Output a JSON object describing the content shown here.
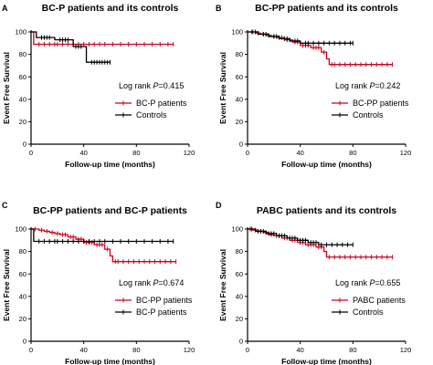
{
  "chart_data": [
    {
      "type": "line",
      "panel_letter": "A",
      "title": "BC-P patients and its controls",
      "xlabel": "Follow-up time (months)",
      "ylabel": "Event Free Survival",
      "xlim": [
        0,
        120
      ],
      "ylim": [
        0,
        100
      ],
      "xticks": [
        "0",
        "40",
        "80",
        "120"
      ],
      "yticks": [
        "0",
        "20",
        "40",
        "60",
        "80",
        "100"
      ],
      "annotation_prefix": "Log rank ",
      "annotation_p": "P",
      "annotation_value": "=0.415",
      "legend_position": "right",
      "series": [
        {
          "name": "BC-P patients",
          "color": "#d0021b",
          "steps": [
            [
              0,
              100
            ],
            [
              2,
              89
            ],
            [
              108,
              89
            ]
          ],
          "censor": [
            6,
            10,
            14,
            18,
            20,
            24,
            28,
            32,
            36,
            40,
            44,
            48,
            52,
            56,
            62,
            68,
            74,
            80,
            86,
            92,
            98,
            104,
            108
          ]
        },
        {
          "name": "Controls",
          "color": "#000000",
          "steps": [
            [
              0,
              100
            ],
            [
              4,
              95
            ],
            [
              16,
              95
            ],
            [
              18,
              93
            ],
            [
              30,
              93
            ],
            [
              32,
              87
            ],
            [
              40,
              87
            ],
            [
              42,
              73
            ],
            [
              60,
              73
            ]
          ],
          "censor": [
            8,
            10,
            12,
            14,
            22,
            24,
            26,
            28,
            34,
            36,
            38,
            46,
            48,
            50,
            52,
            54,
            56,
            58,
            60
          ]
        }
      ]
    },
    {
      "type": "line",
      "panel_letter": "B",
      "title": "BC-PP patients and its controls",
      "xlabel": "Follow-up time (months)",
      "ylabel": "Event Free Survival",
      "xlim": [
        0,
        120
      ],
      "ylim": [
        0,
        100
      ],
      "xticks": [
        "0",
        "40",
        "80",
        "120"
      ],
      "yticks": [
        "0",
        "20",
        "40",
        "60",
        "80",
        "100"
      ],
      "annotation_prefix": "Log rank ",
      "annotation_p": "P",
      "annotation_value": "=0.242",
      "legend_position": "right",
      "series": [
        {
          "name": "BC-PP patients",
          "color": "#d0021b",
          "steps": [
            [
              0,
              100
            ],
            [
              6,
              99
            ],
            [
              10,
              98
            ],
            [
              14,
              97
            ],
            [
              18,
              96
            ],
            [
              22,
              95
            ],
            [
              28,
              93
            ],
            [
              34,
              91
            ],
            [
              40,
              88
            ],
            [
              48,
              86
            ],
            [
              56,
              82
            ],
            [
              60,
              76
            ],
            [
              62,
              71
            ],
            [
              110,
              71
            ]
          ],
          "censor": [
            3,
            8,
            12,
            16,
            20,
            24,
            26,
            30,
            32,
            36,
            38,
            42,
            44,
            46,
            50,
            52,
            54,
            58,
            64,
            66,
            70,
            74,
            78,
            82,
            86,
            90,
            94,
            98,
            102,
            106,
            110
          ]
        },
        {
          "name": "Controls",
          "color": "#000000",
          "steps": [
            [
              0,
              100
            ],
            [
              8,
              98
            ],
            [
              16,
              96
            ],
            [
              24,
              94
            ],
            [
              32,
              92
            ],
            [
              40,
              90
            ],
            [
              80,
              90
            ]
          ],
          "censor": [
            4,
            6,
            12,
            14,
            20,
            22,
            28,
            30,
            36,
            38,
            44,
            46,
            50,
            54,
            58,
            62,
            66,
            70,
            74,
            78,
            80
          ]
        }
      ]
    },
    {
      "type": "line",
      "panel_letter": "C",
      "title": "BC-PP patients and BC-P patients",
      "xlabel": "Follow-up time (months)",
      "ylabel": "Event Free Survival",
      "xlim": [
        0,
        120
      ],
      "ylim": [
        0,
        100
      ],
      "xticks": [
        "0",
        "40",
        "80",
        "120"
      ],
      "yticks": [
        "0",
        "20",
        "40",
        "60",
        "80",
        "100"
      ],
      "annotation_prefix": "Log rank ",
      "annotation_p": "P",
      "annotation_value": "=0.674",
      "legend_position": "right",
      "series": [
        {
          "name": "BC-PP patients",
          "color": "#d0021b",
          "steps": [
            [
              0,
              100
            ],
            [
              6,
              99
            ],
            [
              10,
              98
            ],
            [
              14,
              97
            ],
            [
              18,
              96
            ],
            [
              22,
              95
            ],
            [
              28,
              93
            ],
            [
              34,
              91
            ],
            [
              40,
              88
            ],
            [
              48,
              86
            ],
            [
              56,
              82
            ],
            [
              60,
              76
            ],
            [
              62,
              71
            ],
            [
              110,
              71
            ]
          ],
          "censor": [
            3,
            8,
            12,
            16,
            20,
            24,
            26,
            30,
            32,
            36,
            38,
            42,
            44,
            46,
            50,
            52,
            54,
            58,
            64,
            66,
            70,
            74,
            78,
            82,
            86,
            90,
            94,
            98,
            102,
            106,
            110
          ]
        },
        {
          "name": "BC-P patients",
          "color": "#000000",
          "steps": [
            [
              0,
              100
            ],
            [
              2,
              89
            ],
            [
              108,
              89
            ]
          ],
          "censor": [
            6,
            10,
            14,
            18,
            20,
            24,
            28,
            32,
            36,
            40,
            44,
            48,
            52,
            56,
            62,
            68,
            74,
            80,
            86,
            92,
            98,
            104,
            108
          ]
        }
      ]
    },
    {
      "type": "line",
      "panel_letter": "D",
      "title": "PABC patients and its controls",
      "xlabel": "Follow-up time (months)",
      "ylabel": "Event Free Survival",
      "xlim": [
        0,
        120
      ],
      "ylim": [
        0,
        100
      ],
      "xticks": [
        "0",
        "40",
        "80",
        "120"
      ],
      "yticks": [
        "0",
        "20",
        "40",
        "60",
        "80",
        "100"
      ],
      "annotation_prefix": "Log rank ",
      "annotation_p": "P",
      "annotation_value": "=0.655",
      "legend_position": "right",
      "series": [
        {
          "name": "PABC patients",
          "color": "#d0021b",
          "steps": [
            [
              0,
              100
            ],
            [
              4,
              99
            ],
            [
              8,
              98
            ],
            [
              12,
              97
            ],
            [
              16,
              95
            ],
            [
              20,
              94
            ],
            [
              26,
              92
            ],
            [
              32,
              90
            ],
            [
              38,
              88
            ],
            [
              44,
              86
            ],
            [
              52,
              84
            ],
            [
              58,
              80
            ],
            [
              60,
              75
            ],
            [
              110,
              75
            ]
          ],
          "censor": [
            2,
            6,
            10,
            14,
            18,
            22,
            24,
            28,
            30,
            34,
            36,
            40,
            42,
            46,
            48,
            50,
            54,
            56,
            62,
            66,
            70,
            74,
            78,
            82,
            86,
            90,
            94,
            98,
            102,
            106,
            110
          ]
        },
        {
          "name": "Controls",
          "color": "#000000",
          "steps": [
            [
              0,
              100
            ],
            [
              6,
              98
            ],
            [
              14,
              96
            ],
            [
              22,
              94
            ],
            [
              30,
              92
            ],
            [
              38,
              90
            ],
            [
              46,
              88
            ],
            [
              54,
              86
            ],
            [
              80,
              86
            ]
          ],
          "censor": [
            3,
            8,
            10,
            12,
            16,
            18,
            20,
            24,
            26,
            28,
            32,
            34,
            36,
            40,
            42,
            44,
            48,
            50,
            52,
            56,
            60,
            64,
            68,
            72,
            76,
            80
          ]
        }
      ]
    }
  ]
}
